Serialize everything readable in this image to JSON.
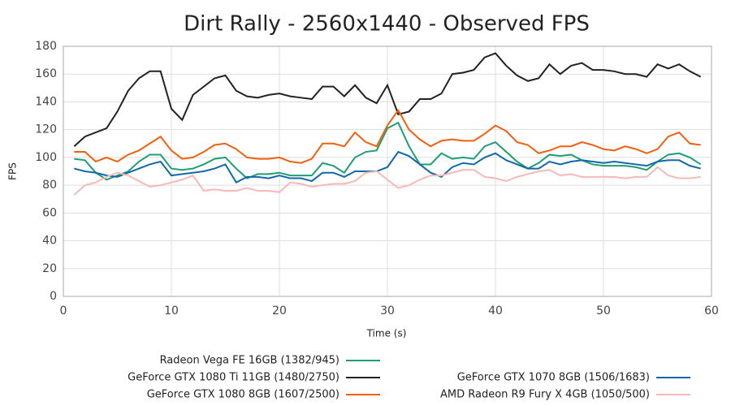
{
  "chart_data": {
    "type": "line",
    "title": "Dirt Rally - 2560x1440 - Observed FPS",
    "x_label": "Time (s)",
    "y_label": "FPS",
    "xlim": [
      0,
      60
    ],
    "xticks": [
      0,
      10,
      20,
      30,
      40,
      50,
      60
    ],
    "ylim": [
      0,
      180
    ],
    "yticks": [
      0,
      20,
      40,
      60,
      80,
      100,
      120,
      140,
      160,
      180
    ],
    "grid": true,
    "x": [
      1,
      2,
      3,
      4,
      5,
      6,
      7,
      8,
      9,
      10,
      11,
      12,
      13,
      14,
      15,
      16,
      17,
      18,
      19,
      20,
      21,
      22,
      23,
      24,
      25,
      26,
      27,
      28,
      29,
      30,
      31,
      32,
      33,
      34,
      35,
      36,
      37,
      38,
      39,
      40,
      41,
      42,
      43,
      44,
      45,
      46,
      47,
      48,
      49,
      50,
      51,
      52,
      53,
      54,
      55,
      56,
      57,
      58,
      59
    ],
    "series": [
      {
        "name": "Radeon Vega FE 16GB (1382/945)",
        "color": "#1f9e74",
        "values": [
          99,
          98,
          89,
          84,
          87,
          90,
          97,
          102,
          102,
          92,
          91,
          92,
          95,
          99,
          100,
          92,
          85,
          88,
          88,
          89,
          87,
          87,
          87,
          96,
          94,
          89,
          100,
          104,
          105,
          121,
          125,
          108,
          95,
          95,
          103,
          99,
          100,
          99,
          108,
          111,
          104,
          97,
          92,
          96,
          102,
          101,
          102,
          98,
          95,
          94,
          94,
          94,
          93,
          91,
          97,
          102,
          103,
          100,
          95
        ]
      },
      {
        "name": "GeForce GTX 1080 Ti 11GB (1480/2750)",
        "color": "#222222",
        "values": [
          108,
          115,
          118,
          121,
          133,
          148,
          157,
          162,
          162,
          135,
          127,
          145,
          151,
          157,
          159,
          148,
          144,
          143,
          145,
          146,
          144,
          143,
          142,
          151,
          151,
          144,
          152,
          143,
          139,
          152,
          131,
          133,
          142,
          142,
          146,
          160,
          161,
          163,
          172,
          175,
          166,
          159,
          155,
          157,
          167,
          160,
          166,
          168,
          163,
          163,
          162,
          160,
          160,
          158,
          167,
          164,
          167,
          162,
          158
        ]
      },
      {
        "name": "GeForce GTX 1070 8GB (1506/1683)",
        "color": "#1268a8",
        "values": [
          92,
          90,
          89,
          87,
          86,
          89,
          92,
          95,
          97,
          87,
          88,
          89,
          90,
          92,
          95,
          82,
          86,
          86,
          85,
          87,
          85,
          85,
          83,
          89,
          89,
          86,
          90,
          90,
          90,
          93,
          104,
          101,
          95,
          89,
          86,
          93,
          96,
          95,
          100,
          103,
          98,
          95,
          92,
          92,
          97,
          95,
          97,
          98,
          97,
          96,
          97,
          96,
          95,
          94,
          97,
          98,
          98,
          94,
          92
        ]
      },
      {
        "name": "GeForce GTX 1080 8GB (1607/2500)",
        "color": "#f0600f",
        "values": [
          104,
          104,
          97,
          100,
          97,
          102,
          105,
          110,
          115,
          105,
          99,
          100,
          104,
          109,
          110,
          106,
          100,
          99,
          99,
          100,
          97,
          96,
          99,
          110,
          110,
          108,
          118,
          111,
          108,
          123,
          134,
          120,
          113,
          108,
          112,
          113,
          112,
          112,
          117,
          123,
          119,
          111,
          109,
          103,
          105,
          108,
          108,
          111,
          109,
          106,
          105,
          108,
          106,
          103,
          106,
          115,
          118,
          110,
          109
        ]
      },
      {
        "name": "AMD Radeon R9 Fury X 4GB (1050/500)",
        "color": "#f7b8b8",
        "values": [
          73,
          80,
          82,
          86,
          89,
          87,
          83,
          79,
          80,
          82,
          84,
          87,
          76,
          77,
          76,
          76,
          78,
          76,
          76,
          75,
          82,
          81,
          79,
          80,
          81,
          81,
          83,
          89,
          90,
          84,
          78,
          80,
          84,
          87,
          87,
          89,
          91,
          91,
          86,
          85,
          83,
          86,
          88,
          90,
          91,
          87,
          88,
          86,
          86,
          86,
          86,
          85,
          86,
          86,
          93,
          87,
          85,
          85,
          86
        ]
      }
    ]
  }
}
